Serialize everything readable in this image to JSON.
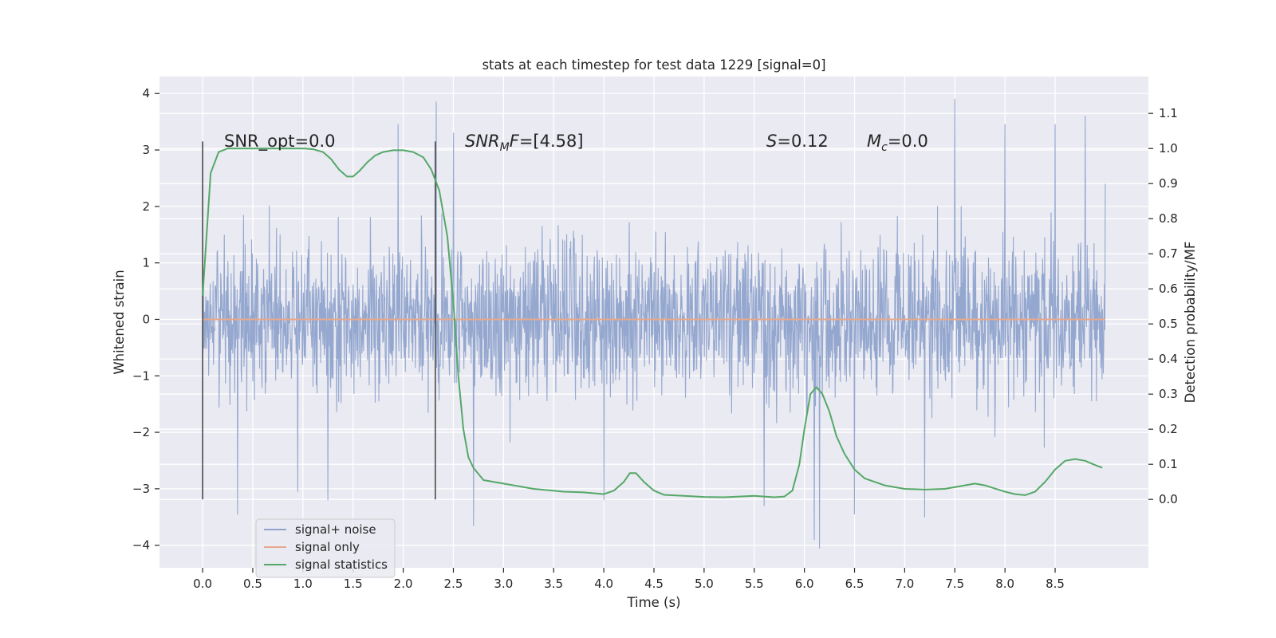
{
  "chart_data": {
    "type": "line",
    "title": "stats at each timestep for test data 1229 [signal=0]",
    "xlabel": "Time (s)",
    "ylabel": "Whitened strain",
    "y2label": "Detection probability/MF",
    "xlim": [
      -0.43,
      9.43
    ],
    "ylim": [
      -4.4,
      4.3
    ],
    "y2lim": [
      -0.195,
      1.205
    ],
    "x_ticks": [
      0.0,
      0.5,
      1.0,
      1.5,
      2.0,
      2.5,
      3.0,
      3.5,
      4.0,
      4.5,
      5.0,
      5.5,
      6.0,
      6.5,
      7.0,
      7.5,
      8.0,
      8.5
    ],
    "x_tick_labels": [
      "0.0",
      "0.5",
      "1.0",
      "1.5",
      "2.0",
      "2.5",
      "3.0",
      "3.5",
      "4.0",
      "4.5",
      "5.0",
      "5.5",
      "6.0",
      "6.5",
      "7.0",
      "7.5",
      "8.0",
      "8.5"
    ],
    "y_ticks": [
      -4,
      -3,
      -2,
      -1,
      0,
      1,
      2,
      3,
      4
    ],
    "y_tick_labels": [
      "−4",
      "−3",
      "−2",
      "−1",
      "0",
      "1",
      "2",
      "3",
      "4"
    ],
    "y2_ticks": [
      0.0,
      0.1,
      0.2,
      0.3,
      0.4,
      0.5,
      0.6,
      0.7,
      0.8,
      0.9,
      1.0,
      1.1
    ],
    "y2_tick_labels": [
      "0.0",
      "0.1",
      "0.2",
      "0.3",
      "0.4",
      "0.5",
      "0.6",
      "0.7",
      "0.8",
      "0.9",
      "1.0",
      "1.1"
    ],
    "grid": true,
    "legend_position": "lower-left",
    "legend": [
      {
        "name": "signal+ noise",
        "color": "#8fa3cc"
      },
      {
        "name": "signal only",
        "color": "#e8a88a"
      },
      {
        "name": "signal statistics",
        "color": "#55a868"
      }
    ],
    "annotations": {
      "snr_opt": "SNR_opt=0.0",
      "snr_mf_base": "SNR",
      "snr_mf_sub": "M",
      "snr_mf_rest": "F",
      "snr_mf_value": "=[4.58]",
      "s_symbol": "S",
      "s_value": "=0.12",
      "mc_symbol": "M",
      "mc_sub": "c",
      "mc_value": "=0.0"
    },
    "vertical_markers": [
      0.0,
      2.32
    ],
    "series": [
      {
        "name": "signal+ noise",
        "axis": "left",
        "color": "#8fa3cc",
        "x_range": [
          0.0,
          9.0
        ],
        "sample_count": 2250,
        "typical_range": [
          -1.7,
          1.7
        ],
        "peak_x": [
          0.35,
          0.95,
          1.25,
          1.95,
          2.33,
          2.5,
          2.7,
          4.0,
          5.6,
          6.1,
          6.15,
          6.5,
          7.2,
          7.5,
          8.0,
          8.5,
          8.8,
          9.0
        ],
        "peak_y": [
          -3.45,
          -3.05,
          -3.2,
          3.45,
          3.85,
          3.3,
          -3.65,
          -3.2,
          -3.3,
          -3.9,
          -4.05,
          -3.45,
          -3.5,
          3.9,
          3.45,
          3.45,
          3.6,
          2.4
        ]
      },
      {
        "name": "signal only",
        "axis": "left",
        "color": "#e8a88a",
        "x": [
          0.0,
          9.0
        ],
        "y": [
          0.0,
          0.0
        ]
      },
      {
        "name": "signal statistics",
        "axis": "right",
        "color": "#55a868",
        "x": [
          0.0,
          0.08,
          0.16,
          0.25,
          0.4,
          0.6,
          0.8,
          1.0,
          1.1,
          1.2,
          1.28,
          1.36,
          1.44,
          1.5,
          1.56,
          1.64,
          1.72,
          1.8,
          1.9,
          2.0,
          2.1,
          2.2,
          2.28,
          2.36,
          2.44,
          2.5,
          2.55,
          2.6,
          2.65,
          2.7,
          2.8,
          3.0,
          3.3,
          3.6,
          3.8,
          4.0,
          4.1,
          4.2,
          4.26,
          4.32,
          4.4,
          4.5,
          4.6,
          4.8,
          5.0,
          5.2,
          5.5,
          5.7,
          5.8,
          5.88,
          5.95,
          6.0,
          6.06,
          6.12,
          6.18,
          6.25,
          6.32,
          6.4,
          6.5,
          6.6,
          6.8,
          7.0,
          7.2,
          7.4,
          7.6,
          7.7,
          7.8,
          8.0,
          8.1,
          8.2,
          8.3,
          8.4,
          8.5,
          8.6,
          8.7,
          8.8,
          8.88,
          8.97
        ],
        "y": [
          0.58,
          0.93,
          0.99,
          1.0,
          1.0,
          1.0,
          1.0,
          1.0,
          0.998,
          0.99,
          0.97,
          0.94,
          0.92,
          0.92,
          0.935,
          0.96,
          0.98,
          0.99,
          0.995,
          0.995,
          0.99,
          0.975,
          0.94,
          0.88,
          0.75,
          0.56,
          0.35,
          0.2,
          0.12,
          0.09,
          0.055,
          0.045,
          0.03,
          0.022,
          0.02,
          0.015,
          0.025,
          0.05,
          0.075,
          0.075,
          0.05,
          0.025,
          0.013,
          0.01,
          0.007,
          0.006,
          0.01,
          0.006,
          0.008,
          0.025,
          0.1,
          0.2,
          0.3,
          0.32,
          0.3,
          0.25,
          0.18,
          0.13,
          0.085,
          0.06,
          0.04,
          0.03,
          0.028,
          0.03,
          0.04,
          0.045,
          0.04,
          0.022,
          0.015,
          0.012,
          0.022,
          0.05,
          0.085,
          0.11,
          0.115,
          0.11,
          0.1,
          0.09
        ]
      }
    ]
  }
}
